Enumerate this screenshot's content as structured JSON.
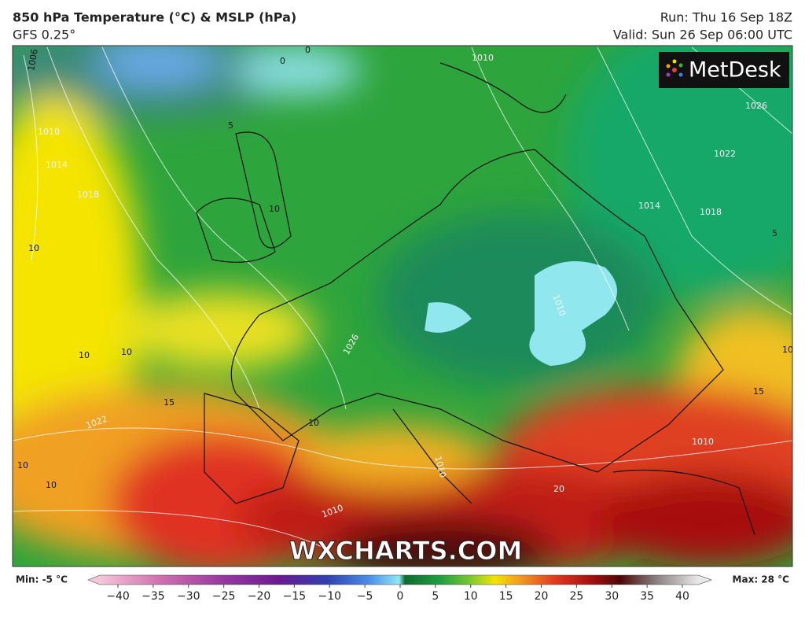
{
  "header": {
    "title": "850 hPa Temperature (°C) & MSLP (hPa)",
    "subtitle": "GFS 0.25°",
    "run": "Run: Thu 16 Sep 18Z",
    "valid": "Valid: Sun 26 Sep 06:00 UTC"
  },
  "logo": "MetDesk",
  "watermark": "WXCHARTS.COM",
  "legend": {
    "min": "Min: -5 °C",
    "max": "Max: 28 °C",
    "ticks": [
      {
        "value": -40,
        "label": "−40"
      },
      {
        "value": -35,
        "label": "−35"
      },
      {
        "value": -30,
        "label": "−30"
      },
      {
        "value": -25,
        "label": "−25"
      },
      {
        "value": -20,
        "label": "−20"
      },
      {
        "value": -15,
        "label": "−15"
      },
      {
        "value": -10,
        "label": "−10"
      },
      {
        "value": -5,
        "label": "−5"
      },
      0,
      5,
      10,
      15,
      20,
      25,
      30,
      35,
      40
    ]
  },
  "map_labels": [
    "1006",
    "1010",
    "1014",
    "1018",
    "0",
    "0",
    "1010",
    "1026",
    "1022",
    "1014",
    "1018",
    "5",
    "5",
    "10",
    "10",
    "10",
    "10",
    "1026",
    "1010",
    "15",
    "15",
    "1022",
    "10",
    "10",
    "1010",
    "1010",
    "1010",
    "20",
    "10",
    "10"
  ]
}
